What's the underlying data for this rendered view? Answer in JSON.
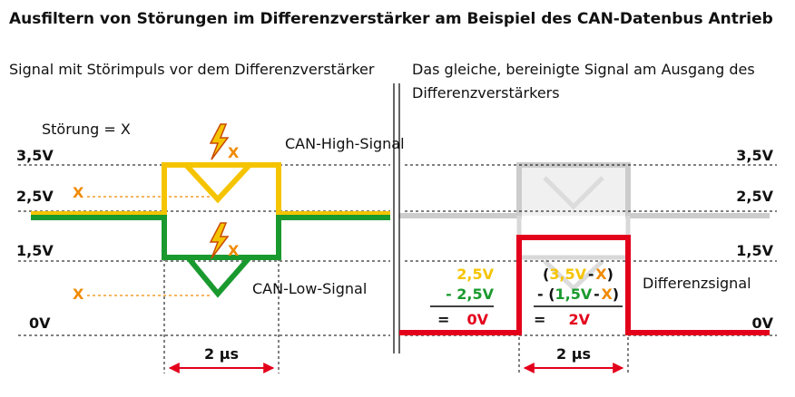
{
  "title": "Ausfiltern von Störungen im Differenzverstärker am Beispiel des CAN-Datenbus Antrieb",
  "left_caption": "Signal mit Störimpuls vor dem Differenzverstärker",
  "right_caption_line1": "Das gleiche, bereinigte Signal am Ausgang des",
  "right_caption_line2": "Differenzverstärkers",
  "stoerung_label": "Störung = X",
  "x_marker": "X",
  "levels": {
    "v35": "3,5V",
    "v25": "2,5V",
    "v15": "1,5V",
    "v0": "0V"
  },
  "can_high_label": "CAN-High-Signal",
  "can_low_label": "CAN-Low-Signal",
  "differenzsignal_label": "Differenzsignal",
  "time_label": "2 µs",
  "calc_left": {
    "a": "2,5V",
    "b": "- 2,5V",
    "eq": "=",
    "result": "0V"
  },
  "calc_right": {
    "a_open": "(",
    "a_val": "3,5V",
    "a_minus": "-",
    "a_x": "X",
    "a_close": ")",
    "b_pre": "- (",
    "b_val": "1,5V",
    "b_minus": "-",
    "b_x": "X",
    "b_close": ")",
    "eq": "=",
    "result": "2V"
  },
  "colors": {
    "can_high": "#f5c400",
    "can_low": "#1a9a2e",
    "differenz": "#e3001b",
    "disturbance": "#f08a00",
    "faded": "#cccccc"
  }
}
